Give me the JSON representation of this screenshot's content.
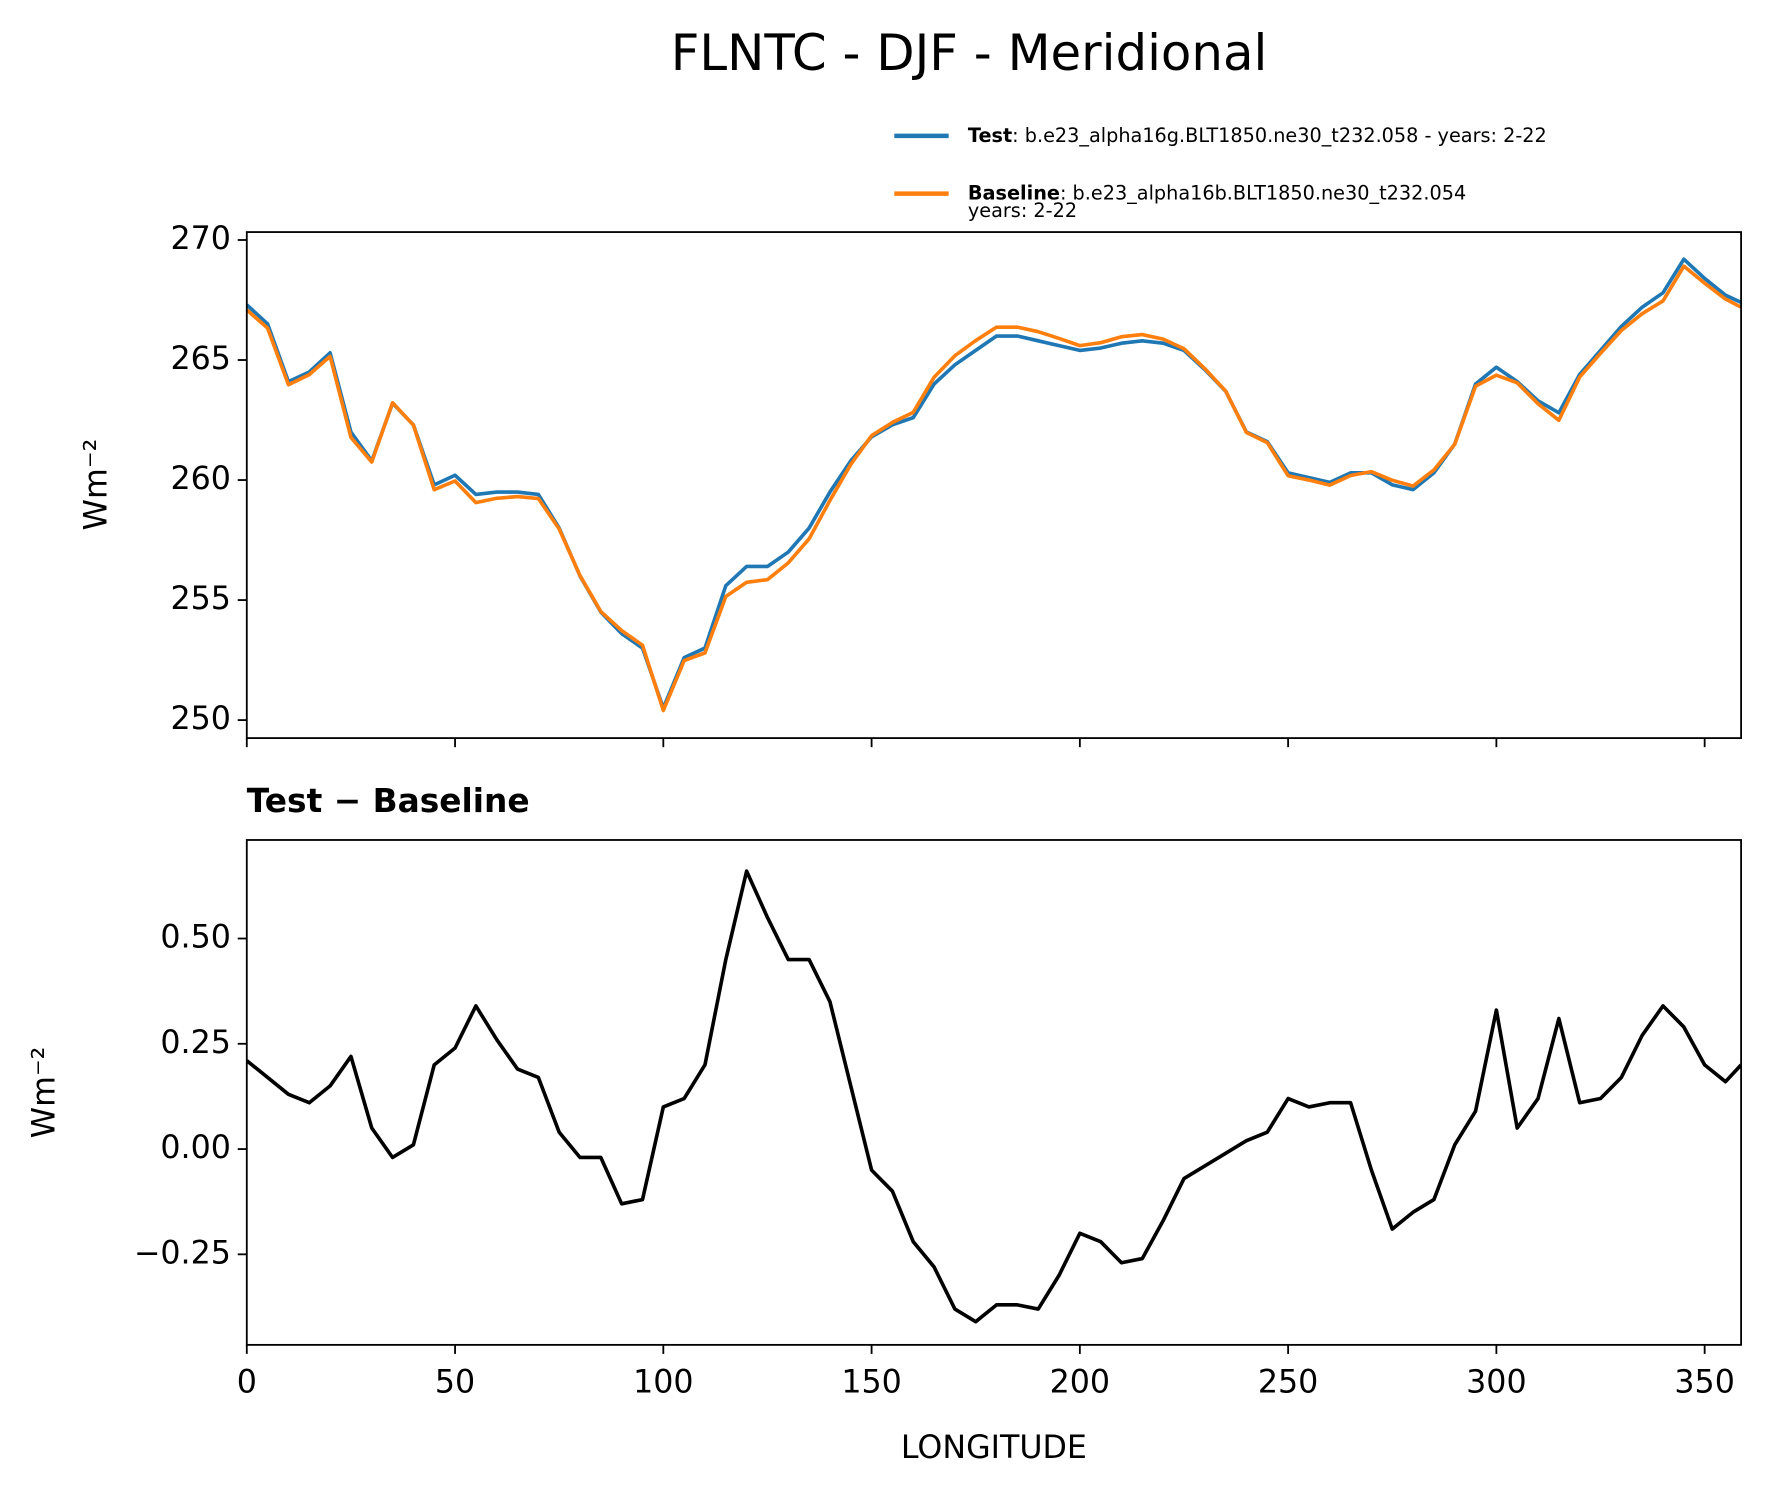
{
  "chart_data": [
    {
      "type": "line",
      "title": "FLNTC - DJF - Meridional",
      "ylabel": "Wm⁻²",
      "x": [
        0,
        5,
        10,
        15,
        20,
        25,
        30,
        35,
        40,
        45,
        50,
        55,
        60,
        65,
        70,
        75,
        80,
        85,
        90,
        95,
        100,
        105,
        110,
        115,
        120,
        125,
        130,
        135,
        140,
        145,
        150,
        155,
        160,
        165,
        170,
        175,
        180,
        185,
        190,
        195,
        200,
        205,
        210,
        215,
        220,
        225,
        230,
        235,
        240,
        245,
        250,
        255,
        260,
        265,
        270,
        275,
        280,
        285,
        290,
        295,
        300,
        305,
        310,
        315,
        320,
        325,
        330,
        335,
        340,
        345,
        350,
        355,
        358.75
      ],
      "series": [
        {
          "name": "Test",
          "description": [
            ": b.e23_alpha16g.BLT1850.ne30_t232.058 - years: 2-22"
          ],
          "color": "#1f77b4",
          "values": [
            267.3,
            266.5,
            264.1,
            264.5,
            265.3,
            262.0,
            260.8,
            263.2,
            262.3,
            259.8,
            260.2,
            259.4,
            259.5,
            259.5,
            259.4,
            258.0,
            256.0,
            254.5,
            253.6,
            253.0,
            250.5,
            252.6,
            253.0,
            255.6,
            256.4,
            256.4,
            257.0,
            258.0,
            259.5,
            260.8,
            261.8,
            262.3,
            262.6,
            264.0,
            264.8,
            265.4,
            266.0,
            266.0,
            265.8,
            265.6,
            265.4,
            265.5,
            265.7,
            265.8,
            265.7,
            265.4,
            264.6,
            263.7,
            262.0,
            261.6,
            260.3,
            260.1,
            259.9,
            260.3,
            260.3,
            259.8,
            259.6,
            260.3,
            261.5,
            264.0,
            264.7,
            264.1,
            263.3,
            262.8,
            264.4,
            265.4,
            266.4,
            267.2,
            267.8,
            269.2,
            268.4,
            267.7,
            267.4
          ]
        },
        {
          "name": "Baseline",
          "description": [
            ": b.e23_alpha16b.BLT1850.ne30_t232.054",
            "years: 2-22"
          ],
          "color": "#ff7f0e",
          "values": [
            267.09,
            266.33,
            263.97,
            264.39,
            265.15,
            261.78,
            260.75,
            263.22,
            262.29,
            259.6,
            259.96,
            259.06,
            259.24,
            259.31,
            259.23,
            257.96,
            256.02,
            254.52,
            253.73,
            253.12,
            250.4,
            252.48,
            252.8,
            255.15,
            255.74,
            255.85,
            256.55,
            257.55,
            259.15,
            260.65,
            261.85,
            262.4,
            262.82,
            264.28,
            265.18,
            265.81,
            266.37,
            266.37,
            266.18,
            265.9,
            265.6,
            265.72,
            265.97,
            266.06,
            265.87,
            265.47,
            264.64,
            263.71,
            261.98,
            261.56,
            260.18,
            260.0,
            259.79,
            260.19,
            260.35,
            259.99,
            259.75,
            260.42,
            261.49,
            263.91,
            264.37,
            264.05,
            263.18,
            262.49,
            264.29,
            265.28,
            266.23,
            266.93,
            267.46,
            268.91,
            268.2,
            267.54,
            267.2
          ]
        }
      ],
      "xlim": [
        0,
        358.75
      ],
      "xticks": [
        0,
        50,
        100,
        150,
        200,
        250,
        300,
        350
      ],
      "ylim": [
        249.25,
        270.33
      ],
      "yticks": [
        250,
        255,
        260,
        265,
        270
      ]
    },
    {
      "type": "line",
      "title": "Test − Baseline",
      "ylabel": "Wm⁻²",
      "xlabel": "LONGITUDE",
      "x": [
        0,
        5,
        10,
        15,
        20,
        25,
        30,
        35,
        40,
        45,
        50,
        55,
        60,
        65,
        70,
        75,
        80,
        85,
        90,
        95,
        100,
        105,
        110,
        115,
        120,
        125,
        130,
        135,
        140,
        145,
        150,
        155,
        160,
        165,
        170,
        175,
        180,
        185,
        190,
        195,
        200,
        205,
        210,
        215,
        220,
        225,
        230,
        235,
        240,
        245,
        250,
        255,
        260,
        265,
        270,
        275,
        280,
        285,
        290,
        295,
        300,
        305,
        310,
        315,
        320,
        325,
        330,
        335,
        340,
        345,
        350,
        355,
        358.75
      ],
      "series": [
        {
          "color": "#000000",
          "values": [
            0.21,
            0.17,
            0.13,
            0.11,
            0.15,
            0.22,
            0.05,
            -0.02,
            0.01,
            0.2,
            0.24,
            0.34,
            0.26,
            0.19,
            0.17,
            0.04,
            -0.02,
            -0.02,
            -0.13,
            -0.12,
            0.1,
            0.12,
            0.2,
            0.45,
            0.66,
            0.55,
            0.45,
            0.45,
            0.35,
            0.15,
            -0.05,
            -0.1,
            -0.22,
            -0.28,
            -0.38,
            -0.41,
            -0.37,
            -0.37,
            -0.38,
            -0.3,
            -0.2,
            -0.22,
            -0.27,
            -0.26,
            -0.17,
            -0.07,
            -0.04,
            -0.01,
            0.02,
            0.04,
            0.12,
            0.1,
            0.11,
            0.11,
            -0.05,
            -0.19,
            -0.15,
            -0.12,
            0.01,
            0.09,
            0.33,
            0.05,
            0.12,
            0.31,
            0.11,
            0.12,
            0.17,
            0.27,
            0.34,
            0.29,
            0.2,
            0.16,
            0.2
          ]
        }
      ],
      "xlim": [
        0,
        358.75
      ],
      "xticks": [
        0,
        50,
        100,
        150,
        200,
        250,
        300,
        350
      ],
      "ylim": [
        -0.465,
        0.734
      ],
      "yticks": [
        {
          "value": -0.25,
          "label": "−0.25"
        },
        {
          "value": 0,
          "label": "0.00"
        },
        {
          "value": 0.25,
          "label": "0.25"
        },
        {
          "value": 0.5,
          "label": "0.50"
        }
      ]
    }
  ]
}
